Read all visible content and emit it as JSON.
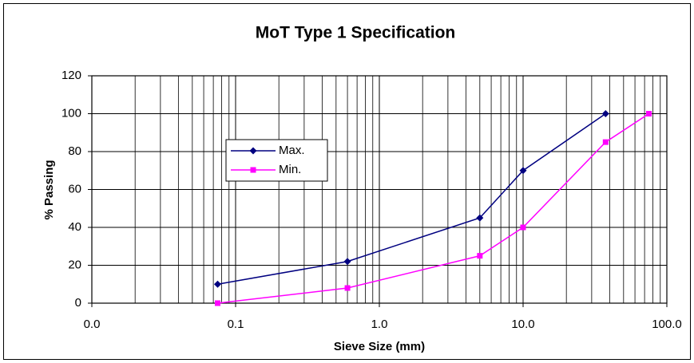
{
  "chart_data": {
    "type": "line",
    "title": "MoT Type 1 Specification",
    "x_label": "Sieve Size (mm)",
    "y_label": "% Passing",
    "x_log": true,
    "grid": true,
    "legend": "center left",
    "xlim": [
      0.01,
      100
    ],
    "xticks": [
      {
        "value": 0.01,
        "label": "0.0"
      },
      0.1,
      {
        "value": 1,
        "label": "1.0"
      },
      {
        "value": 10,
        "label": "10.0"
      },
      {
        "value": 100,
        "label": "100.0"
      }
    ],
    "ylim": [
      0,
      120
    ],
    "yticks": [
      0,
      20,
      40,
      60,
      80,
      100,
      120
    ],
    "series": [
      {
        "name": "Max.",
        "color": "#000080",
        "marker": "diamond",
        "x": [
          0.075,
          0.6,
          5,
          10,
          37.5
        ],
        "values": [
          10,
          22,
          45,
          70,
          100
        ]
      },
      {
        "name": "Min.",
        "color": "#ff00ff",
        "marker": "square",
        "x": [
          0.075,
          0.6,
          5,
          10,
          37.5,
          75
        ],
        "values": [
          0,
          8,
          25,
          40,
          85,
          100
        ]
      }
    ]
  }
}
